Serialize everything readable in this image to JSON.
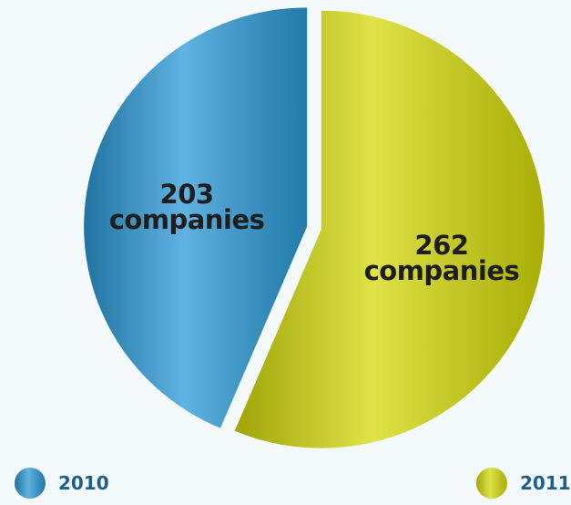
{
  "chart_data": {
    "type": "pie",
    "categories": [
      "2010",
      "2011"
    ],
    "values": [
      203,
      262
    ],
    "value_labels": [
      "203\ncompanies",
      "262\ncompanies"
    ],
    "colors": [
      "#2b9ad6",
      "#d4db0a"
    ]
  }
}
